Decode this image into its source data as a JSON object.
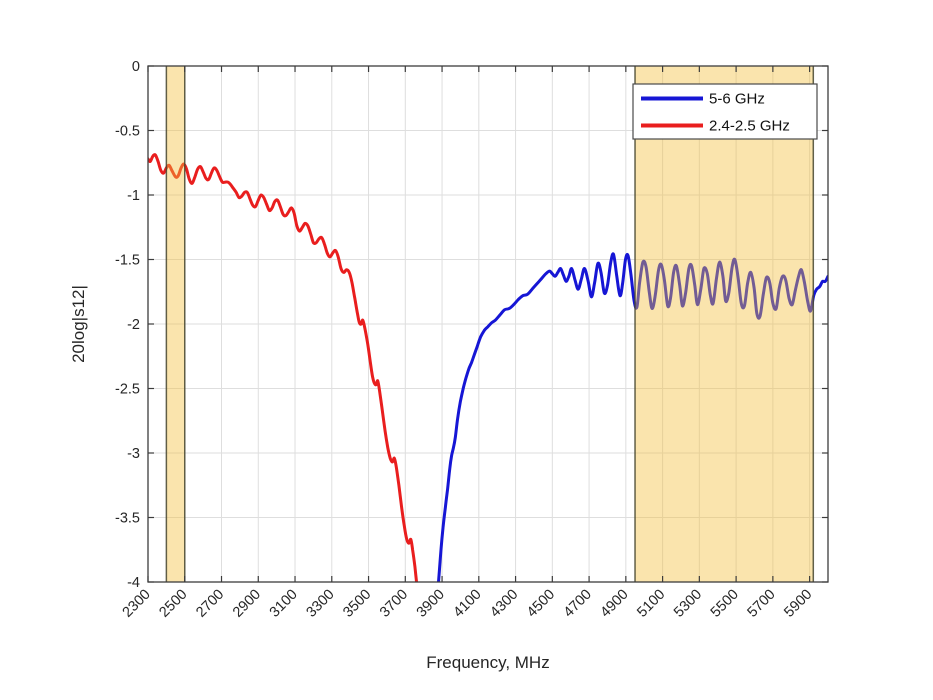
{
  "chart_data": {
    "type": "line",
    "title": "",
    "xlabel": "Frequency, MHz",
    "ylabel": "20log|s12|",
    "xlim": [
      2300,
      6000
    ],
    "ylim": [
      -4,
      0
    ],
    "xticks": [
      2300,
      2500,
      2700,
      2900,
      3100,
      3300,
      3500,
      3700,
      3900,
      4100,
      4300,
      4500,
      4700,
      4900,
      5100,
      5300,
      5500,
      5700,
      5900
    ],
    "yticks": [
      0,
      -0.5,
      -1,
      -1.5,
      -2,
      -2.5,
      -3,
      -3.5,
      -4
    ],
    "grid": true,
    "legend": {
      "position": "northeast",
      "entries": [
        {
          "label": "5-6 GHz",
          "color": "#1616D5"
        },
        {
          "label": "2.4-2.5 GHz",
          "color": "#E91E1E"
        }
      ]
    },
    "highlight_bands": [
      {
        "from": 2400,
        "to": 2500
      },
      {
        "from": 4950,
        "to": 5920
      }
    ],
    "band_style": {
      "fill": "#F2BF3C",
      "fill_opacity": 0.42,
      "edge": "#45452F",
      "edge_opacity": 0.85
    },
    "axis_style": {
      "border": "#3C3C3C",
      "grid": "#DEDEDE",
      "tick_text": "#262626"
    },
    "series": [
      {
        "name": "5-6 GHz",
        "color": "#1616D5",
        "points": [
          [
            3878,
            -4.05
          ],
          [
            3885,
            -3.92
          ],
          [
            3895,
            -3.74
          ],
          [
            3905,
            -3.58
          ],
          [
            3918,
            -3.42
          ],
          [
            3930,
            -3.28
          ],
          [
            3942,
            -3.12
          ],
          [
            3952,
            -3.02
          ],
          [
            3962,
            -2.96
          ],
          [
            3972,
            -2.88
          ],
          [
            3985,
            -2.73
          ],
          [
            4000,
            -2.6
          ],
          [
            4015,
            -2.5
          ],
          [
            4030,
            -2.42
          ],
          [
            4045,
            -2.35
          ],
          [
            4060,
            -2.3
          ],
          [
            4075,
            -2.24
          ],
          [
            4090,
            -2.18
          ],
          [
            4110,
            -2.1
          ],
          [
            4130,
            -2.05
          ],
          [
            4150,
            -2.02
          ],
          [
            4170,
            -1.99
          ],
          [
            4190,
            -1.97
          ],
          [
            4215,
            -1.93
          ],
          [
            4240,
            -1.89
          ],
          [
            4265,
            -1.88
          ],
          [
            4290,
            -1.85
          ],
          [
            4315,
            -1.81
          ],
          [
            4340,
            -1.78
          ],
          [
            4365,
            -1.77
          ],
          [
            4390,
            -1.73
          ],
          [
            4415,
            -1.69
          ],
          [
            4440,
            -1.65
          ],
          [
            4465,
            -1.61
          ],
          [
            4485,
            -1.59
          ],
          [
            4500,
            -1.61
          ],
          [
            4515,
            -1.63
          ],
          [
            4530,
            -1.6
          ],
          [
            4545,
            -1.57
          ],
          [
            4560,
            -1.62
          ],
          [
            4575,
            -1.67
          ],
          [
            4590,
            -1.63
          ],
          [
            4605,
            -1.57
          ],
          [
            4622,
            -1.65
          ],
          [
            4640,
            -1.73
          ],
          [
            4658,
            -1.65
          ],
          [
            4675,
            -1.57
          ],
          [
            4695,
            -1.67
          ],
          [
            4713,
            -1.79
          ],
          [
            4730,
            -1.68
          ],
          [
            4748,
            -1.53
          ],
          [
            4765,
            -1.6
          ],
          [
            4783,
            -1.76
          ],
          [
            4800,
            -1.7
          ],
          [
            4818,
            -1.52
          ],
          [
            4833,
            -1.46
          ],
          [
            4850,
            -1.62
          ],
          [
            4868,
            -1.78
          ],
          [
            4883,
            -1.68
          ],
          [
            4898,
            -1.5
          ],
          [
            4912,
            -1.47
          ],
          [
            4928,
            -1.62
          ],
          [
            4945,
            -1.82
          ],
          [
            4960,
            -1.87
          ],
          [
            4975,
            -1.68
          ],
          [
            4993,
            -1.52
          ],
          [
            5010,
            -1.56
          ],
          [
            5028,
            -1.76
          ],
          [
            5043,
            -1.88
          ],
          [
            5060,
            -1.78
          ],
          [
            5078,
            -1.58
          ],
          [
            5093,
            -1.54
          ],
          [
            5110,
            -1.66
          ],
          [
            5128,
            -1.86
          ],
          [
            5143,
            -1.8
          ],
          [
            5160,
            -1.6
          ],
          [
            5175,
            -1.55
          ],
          [
            5193,
            -1.7
          ],
          [
            5208,
            -1.86
          ],
          [
            5225,
            -1.76
          ],
          [
            5243,
            -1.57
          ],
          [
            5258,
            -1.55
          ],
          [
            5275,
            -1.7
          ],
          [
            5290,
            -1.85
          ],
          [
            5308,
            -1.73
          ],
          [
            5325,
            -1.57
          ],
          [
            5343,
            -1.61
          ],
          [
            5360,
            -1.78
          ],
          [
            5375,
            -1.84
          ],
          [
            5393,
            -1.65
          ],
          [
            5410,
            -1.52
          ],
          [
            5428,
            -1.63
          ],
          [
            5443,
            -1.82
          ],
          [
            5460,
            -1.76
          ],
          [
            5478,
            -1.56
          ],
          [
            5493,
            -1.5
          ],
          [
            5510,
            -1.63
          ],
          [
            5528,
            -1.84
          ],
          [
            5545,
            -1.86
          ],
          [
            5563,
            -1.68
          ],
          [
            5580,
            -1.6
          ],
          [
            5598,
            -1.72
          ],
          [
            5613,
            -1.92
          ],
          [
            5630,
            -1.94
          ],
          [
            5648,
            -1.77
          ],
          [
            5665,
            -1.64
          ],
          [
            5683,
            -1.68
          ],
          [
            5700,
            -1.84
          ],
          [
            5718,
            -1.88
          ],
          [
            5735,
            -1.72
          ],
          [
            5753,
            -1.63
          ],
          [
            5770,
            -1.66
          ],
          [
            5788,
            -1.8
          ],
          [
            5805,
            -1.85
          ],
          [
            5822,
            -1.74
          ],
          [
            5840,
            -1.63
          ],
          [
            5855,
            -1.58
          ],
          [
            5872,
            -1.68
          ],
          [
            5890,
            -1.83
          ],
          [
            5905,
            -1.9
          ],
          [
            5922,
            -1.78
          ],
          [
            5938,
            -1.73
          ],
          [
            5955,
            -1.71
          ],
          [
            5970,
            -1.67
          ],
          [
            5985,
            -1.67
          ],
          [
            6000,
            -1.63
          ]
        ]
      },
      {
        "name": "2.4-2.5 GHz",
        "color": "#E91E1E",
        "points": [
          [
            2300,
            -0.72
          ],
          [
            2312,
            -0.74
          ],
          [
            2326,
            -0.7
          ],
          [
            2340,
            -0.69
          ],
          [
            2355,
            -0.74
          ],
          [
            2370,
            -0.81
          ],
          [
            2385,
            -0.83
          ],
          [
            2400,
            -0.79
          ],
          [
            2415,
            -0.77
          ],
          [
            2430,
            -0.81
          ],
          [
            2450,
            -0.86
          ],
          [
            2465,
            -0.85
          ],
          [
            2480,
            -0.79
          ],
          [
            2495,
            -0.76
          ],
          [
            2510,
            -0.8
          ],
          [
            2525,
            -0.88
          ],
          [
            2540,
            -0.91
          ],
          [
            2555,
            -0.86
          ],
          [
            2570,
            -0.8
          ],
          [
            2585,
            -0.78
          ],
          [
            2600,
            -0.82
          ],
          [
            2615,
            -0.87
          ],
          [
            2630,
            -0.88
          ],
          [
            2645,
            -0.83
          ],
          [
            2660,
            -0.79
          ],
          [
            2675,
            -0.81
          ],
          [
            2690,
            -0.86
          ],
          [
            2705,
            -0.9
          ],
          [
            2720,
            -0.9
          ],
          [
            2735,
            -0.9
          ],
          [
            2750,
            -0.92
          ],
          [
            2765,
            -0.95
          ],
          [
            2780,
            -0.98
          ],
          [
            2795,
            -1.02
          ],
          [
            2810,
            -1.01
          ],
          [
            2825,
            -0.98
          ],
          [
            2840,
            -0.98
          ],
          [
            2855,
            -1.03
          ],
          [
            2870,
            -1.08
          ],
          [
            2885,
            -1.09
          ],
          [
            2900,
            -1.04
          ],
          [
            2915,
            -1.0
          ],
          [
            2930,
            -1.02
          ],
          [
            2945,
            -1.07
          ],
          [
            2960,
            -1.12
          ],
          [
            2975,
            -1.1
          ],
          [
            2990,
            -1.05
          ],
          [
            3005,
            -1.04
          ],
          [
            3020,
            -1.09
          ],
          [
            3035,
            -1.15
          ],
          [
            3050,
            -1.16
          ],
          [
            3065,
            -1.13
          ],
          [
            3080,
            -1.1
          ],
          [
            3095,
            -1.14
          ],
          [
            3110,
            -1.24
          ],
          [
            3125,
            -1.28
          ],
          [
            3140,
            -1.25
          ],
          [
            3155,
            -1.22
          ],
          [
            3170,
            -1.24
          ],
          [
            3185,
            -1.3
          ],
          [
            3200,
            -1.37
          ],
          [
            3215,
            -1.37
          ],
          [
            3230,
            -1.34
          ],
          [
            3245,
            -1.33
          ],
          [
            3260,
            -1.38
          ],
          [
            3275,
            -1.45
          ],
          [
            3290,
            -1.48
          ],
          [
            3305,
            -1.45
          ],
          [
            3320,
            -1.43
          ],
          [
            3335,
            -1.48
          ],
          [
            3350,
            -1.57
          ],
          [
            3365,
            -1.6
          ],
          [
            3380,
            -1.58
          ],
          [
            3395,
            -1.6
          ],
          [
            3410,
            -1.68
          ],
          [
            3425,
            -1.8
          ],
          [
            3440,
            -1.92
          ],
          [
            3450,
            -1.99
          ],
          [
            3460,
            -2.0
          ],
          [
            3468,
            -1.97
          ],
          [
            3478,
            -2.02
          ],
          [
            3495,
            -2.15
          ],
          [
            3510,
            -2.3
          ],
          [
            3522,
            -2.41
          ],
          [
            3532,
            -2.46
          ],
          [
            3542,
            -2.47
          ],
          [
            3550,
            -2.44
          ],
          [
            3560,
            -2.52
          ],
          [
            3575,
            -2.67
          ],
          [
            3590,
            -2.83
          ],
          [
            3605,
            -2.96
          ],
          [
            3618,
            -3.04
          ],
          [
            3630,
            -3.07
          ],
          [
            3640,
            -3.04
          ],
          [
            3650,
            -3.1
          ],
          [
            3665,
            -3.25
          ],
          [
            3680,
            -3.42
          ],
          [
            3695,
            -3.57
          ],
          [
            3708,
            -3.67
          ],
          [
            3720,
            -3.7
          ],
          [
            3730,
            -3.67
          ],
          [
            3740,
            -3.75
          ],
          [
            3752,
            -3.88
          ],
          [
            3765,
            -4.05
          ]
        ]
      }
    ]
  }
}
